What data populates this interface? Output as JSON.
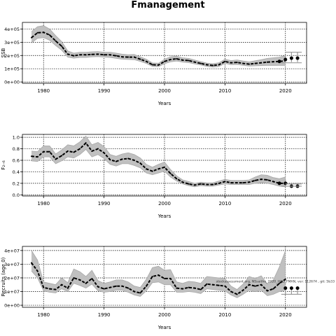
{
  "page_title": "Fmanagement",
  "colors": {
    "band": "#c0c0c0",
    "line": "#000000",
    "grid": "#000000",
    "refline": "#999999"
  },
  "chart_data": [
    {
      "type": "line",
      "ylabel": "SSB",
      "xlabel": "Years",
      "xlim": [
        1976.5,
        2023.5
      ],
      "ylim": [
        -10000,
        450000
      ],
      "xticks": [
        1980,
        1990,
        2000,
        2010,
        2020
      ],
      "xtick_labels": [
        "1980",
        "1990",
        "2000",
        "2010",
        "2020"
      ],
      "yticks": [
        0,
        100000,
        200000,
        300000,
        400000
      ],
      "ytick_labels": [
        "0e+00",
        "1e+05",
        "2e+05",
        "3e+05",
        "4e+05"
      ],
      "grid": true,
      "years": [
        1978,
        1979,
        1980,
        1981,
        1982,
        1983,
        1984,
        1985,
        1986,
        1987,
        1988,
        1989,
        1990,
        1991,
        1992,
        1993,
        1994,
        1995,
        1996,
        1997,
        1998,
        1999,
        2000,
        2001,
        2002,
        2003,
        2004,
        2005,
        2006,
        2007,
        2008,
        2009,
        2010,
        2011,
        2012,
        2013,
        2014,
        2015,
        2016,
        2017,
        2018,
        2019,
        2020
      ],
      "estimate": [
        335000,
        372000,
        375000,
        355000,
        310000,
        270000,
        210000,
        198000,
        205000,
        205000,
        208000,
        210000,
        205000,
        205000,
        198000,
        190000,
        188000,
        188000,
        172000,
        155000,
        130000,
        128000,
        155000,
        170000,
        175000,
        165000,
        162000,
        150000,
        140000,
        130000,
        125000,
        130000,
        155000,
        145000,
        148000,
        140000,
        135000,
        140000,
        145000,
        150000,
        153000,
        155000,
        160000
      ],
      "lower": [
        295000,
        330000,
        335000,
        315000,
        275000,
        240000,
        188000,
        180000,
        185000,
        185000,
        190000,
        192000,
        188000,
        185000,
        178000,
        172000,
        170000,
        168000,
        155000,
        140000,
        118000,
        116000,
        138000,
        152000,
        158000,
        150000,
        146000,
        136000,
        128000,
        118000,
        112000,
        117000,
        140000,
        130000,
        132000,
        126000,
        120000,
        122000,
        124000,
        125000,
        126000,
        125000,
        125000
      ],
      "upper": [
        380000,
        418000,
        425000,
        400000,
        350000,
        305000,
        235000,
        218000,
        225000,
        225000,
        228000,
        230000,
        225000,
        225000,
        218000,
        210000,
        206000,
        208000,
        190000,
        172000,
        144000,
        142000,
        172000,
        190000,
        195000,
        182000,
        178000,
        166000,
        154000,
        143000,
        138000,
        145000,
        172000,
        162000,
        166000,
        158000,
        152000,
        160000,
        168000,
        178000,
        183000,
        188000,
        200000
      ],
      "forecast": {
        "years": [
          2019,
          2020,
          2021,
          2022
        ],
        "values": [
          155000,
          170000,
          180000,
          180000
        ],
        "lower": [
          null,
          145000,
          150000,
          150000
        ],
        "upper": [
          null,
          200000,
          225000,
          225000
        ]
      }
    },
    {
      "type": "line",
      "ylabel": "F₂₋₆",
      "xlabel": "Years",
      "xlim": [
        1976.5,
        2023.5
      ],
      "ylim": [
        -0.02,
        1.05
      ],
      "xticks": [
        1980,
        1990,
        2000,
        2010,
        2020
      ],
      "xtick_labels": [
        "1980",
        "1990",
        "2000",
        "2010",
        "2020"
      ],
      "yticks": [
        0,
        0.2,
        0.4,
        0.6,
        0.8,
        1.0
      ],
      "ytick_labels": [
        "0.0",
        "0.2",
        "0.4",
        "0.6",
        "0.8",
        "1.0"
      ],
      "grid": true,
      "years": [
        1978,
        1979,
        1980,
        1981,
        1982,
        1983,
        1984,
        1985,
        1986,
        1987,
        1988,
        1989,
        1990,
        1991,
        1992,
        1993,
        1994,
        1995,
        1996,
        1997,
        1998,
        1999,
        2000,
        2001,
        2002,
        2003,
        2004,
        2005,
        2006,
        2007,
        2008,
        2009,
        2010,
        2011,
        2012,
        2013,
        2014,
        2015,
        2016,
        2017,
        2018,
        2019,
        2020
      ],
      "estimate": [
        0.67,
        0.66,
        0.75,
        0.75,
        0.62,
        0.68,
        0.76,
        0.74,
        0.8,
        0.9,
        0.76,
        0.8,
        0.73,
        0.61,
        0.58,
        0.62,
        0.63,
        0.6,
        0.55,
        0.45,
        0.41,
        0.45,
        0.48,
        0.37,
        0.28,
        0.22,
        0.19,
        0.17,
        0.19,
        0.18,
        0.18,
        0.2,
        0.23,
        0.21,
        0.21,
        0.21,
        0.22,
        0.25,
        0.27,
        0.26,
        0.23,
        0.2,
        0.2
      ],
      "lower": [
        0.59,
        0.58,
        0.66,
        0.66,
        0.54,
        0.59,
        0.66,
        0.64,
        0.7,
        0.79,
        0.66,
        0.7,
        0.63,
        0.53,
        0.5,
        0.54,
        0.54,
        0.51,
        0.47,
        0.38,
        0.35,
        0.38,
        0.41,
        0.31,
        0.24,
        0.19,
        0.16,
        0.14,
        0.16,
        0.15,
        0.15,
        0.17,
        0.19,
        0.18,
        0.18,
        0.18,
        0.18,
        0.2,
        0.21,
        0.2,
        0.18,
        0.15,
        0.14
      ],
      "upper": [
        0.76,
        0.75,
        0.85,
        0.85,
        0.71,
        0.78,
        0.87,
        0.85,
        0.92,
        1.02,
        0.87,
        0.91,
        0.84,
        0.7,
        0.67,
        0.71,
        0.73,
        0.7,
        0.64,
        0.53,
        0.48,
        0.53,
        0.57,
        0.44,
        0.33,
        0.26,
        0.23,
        0.2,
        0.22,
        0.21,
        0.21,
        0.24,
        0.27,
        0.25,
        0.25,
        0.25,
        0.26,
        0.31,
        0.35,
        0.34,
        0.3,
        0.28,
        0.31
      ],
      "forecast": {
        "years": [
          2019,
          2020,
          2021,
          2022
        ],
        "values": [
          0.2,
          0.2,
          0.15,
          0.15
        ],
        "lower": [
          null,
          0.15,
          0.12,
          0.12
        ],
        "upper": [
          null,
          0.26,
          0.19,
          0.19
        ]
      }
    },
    {
      "type": "line",
      "ylabel": "Recruits (age 0)",
      "xlabel": "Years",
      "xlim": [
        1976.5,
        2023.5
      ],
      "ylim": [
        -1500000,
        43000000
      ],
      "xticks": [
        1980,
        1990,
        2000,
        2010,
        2020
      ],
      "xtick_labels": [
        "1980",
        "1990",
        "2000",
        "2010",
        "2020"
      ],
      "yticks": [
        0,
        10000000,
        20000000,
        30000000,
        40000000
      ],
      "ytick_labels": [
        "0e+00",
        "1e+07",
        "2e+07",
        "3e+07",
        "4e+07"
      ],
      "grid": true,
      "years": [
        1978,
        1979,
        1980,
        1981,
        1982,
        1983,
        1984,
        1985,
        1986,
        1987,
        1988,
        1989,
        1990,
        1991,
        1992,
        1993,
        1994,
        1995,
        1996,
        1997,
        1998,
        1999,
        2000,
        2001,
        2002,
        2003,
        2004,
        2005,
        2006,
        2007,
        2008,
        2009,
        2010,
        2011,
        2012,
        2013,
        2014,
        2015,
        2016,
        2017,
        2018,
        2019,
        2020
      ],
      "estimate": [
        31000000,
        25000000,
        13000000,
        12000000,
        11500000,
        15000000,
        12500000,
        20000000,
        18500000,
        16000000,
        19500000,
        13500000,
        12000000,
        13000000,
        14000000,
        14000000,
        12500000,
        10000000,
        9000000,
        14000000,
        21000000,
        22000000,
        19500000,
        19500000,
        12500000,
        12000000,
        13000000,
        12500000,
        11500000,
        15500000,
        15000000,
        14500000,
        14000000,
        10000000,
        8000000,
        11000000,
        15000000,
        14000000,
        15000000,
        10500000,
        12000000,
        16000000,
        19000000
      ],
      "lower": [
        25000000,
        20000000,
        10500000,
        9500000,
        9000000,
        12000000,
        10000000,
        16000000,
        14500000,
        12500000,
        15500000,
        10500000,
        9500000,
        10000000,
        11000000,
        11000000,
        9500000,
        7500000,
        6500000,
        10500000,
        16500000,
        17000000,
        15000000,
        15000000,
        9500000,
        9500000,
        10000000,
        9500000,
        8500000,
        12000000,
        11500000,
        11000000,
        10500000,
        7500000,
        5500000,
        8000000,
        11000000,
        10000000,
        11000000,
        7000000,
        8000000,
        10000000,
        11000000
      ],
      "upper": [
        40000000,
        33000000,
        17000000,
        16000000,
        15000000,
        20000000,
        16500000,
        26500000,
        24500000,
        21000000,
        25500000,
        18000000,
        16000000,
        17000000,
        18500000,
        18500000,
        17000000,
        14000000,
        13000000,
        19000000,
        27500000,
        28500000,
        25500000,
        26000000,
        17000000,
        16000000,
        17500000,
        17000000,
        16000000,
        21000000,
        20500000,
        20000000,
        19500000,
        14000000,
        11500000,
        15500000,
        21000000,
        19500000,
        21500000,
        15500000,
        18500000,
        28000000,
        40000000
      ],
      "forecast": {
        "years": [
          2020,
          2021,
          2022
        ],
        "values": [
          12500000,
          12500000,
          12500000
        ],
        "lower": [
          8000000,
          8000000,
          8000000
        ],
        "upper": [
          null,
          null,
          null
        ]
      },
      "annotation": "stockassessment.org, NSsaithe_2020_HAD_FMAN, ver: 112674 , git: 5b33"
    }
  ]
}
